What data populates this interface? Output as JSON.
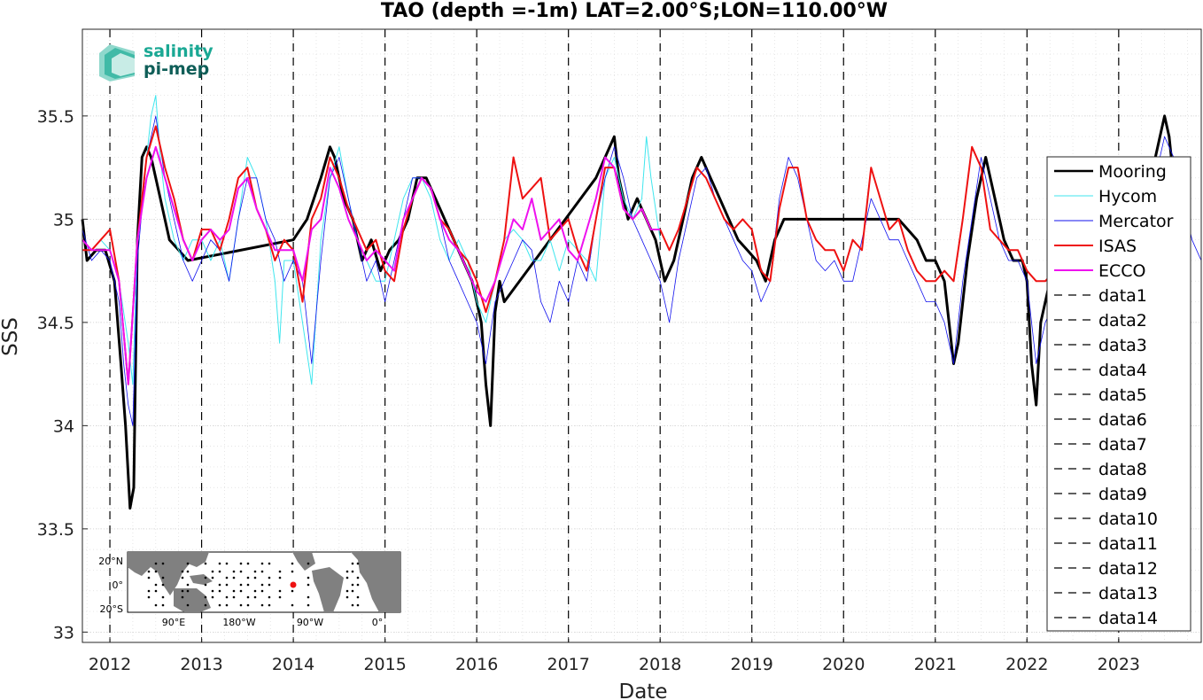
{
  "chart_data": {
    "type": "line",
    "title": "TAO (depth =-1m) LAT=2.00°S;LON=110.00°W",
    "xlabel": "Date",
    "ylabel": "SSS",
    "xlim": [
      2011.7,
      2023.9
    ],
    "ylim": [
      32.95,
      35.92
    ],
    "grid": true,
    "legend_position": "right",
    "x_ticks": [
      2012,
      2013,
      2014,
      2015,
      2016,
      2017,
      2018,
      2019,
      2020,
      2021,
      2022,
      2023
    ],
    "x_tick_labels": [
      "2012",
      "2013",
      "2014",
      "2015",
      "2016",
      "2017",
      "2018",
      "2019",
      "2020",
      "2021",
      "2022",
      "2023"
    ],
    "y_ticks": [
      33,
      33.5,
      34,
      34.5,
      35,
      35.5
    ],
    "y_tick_labels": [
      "33",
      "33.5",
      "34",
      "34.5",
      "35",
      "35.5"
    ],
    "series": [
      {
        "name": "Mooring",
        "color": "#000000",
        "x": [
          2011.7,
          2011.75,
          2011.85,
          2011.95,
          2012.05,
          2012.12,
          2012.17,
          2012.22,
          2012.26,
          2012.3,
          2012.35,
          2012.4,
          2012.45,
          2012.55,
          2012.65,
          2012.75,
          2012.85,
          2014.0,
          2014.15,
          2014.3,
          2014.4,
          2014.45,
          2014.55,
          2014.65,
          2014.75,
          2014.85,
          2014.95,
          2015.05,
          2015.15,
          2015.25,
          2015.35,
          2015.45,
          2015.55,
          2015.65,
          2015.75,
          2015.85,
          2015.95,
          2016.05,
          2016.1,
          2016.15,
          2016.2,
          2016.25,
          2016.3,
          2017.3,
          2017.4,
          2017.5,
          2017.55,
          2017.65,
          2017.75,
          2017.85,
          2017.95,
          2018.05,
          2018.15,
          2018.25,
          2018.35,
          2018.45,
          2018.55,
          2018.65,
          2018.75,
          2018.85,
          2018.95,
          2019.05,
          2019.15,
          2019.25,
          2019.35,
          2020.6,
          2020.7,
          2020.8,
          2020.9,
          2021.0,
          2021.1,
          2021.15,
          2021.2,
          2021.25,
          2021.35,
          2021.45,
          2021.55,
          2021.65,
          2021.75,
          2021.85,
          2021.95,
          2022.0,
          2022.05,
          2022.1,
          2022.15,
          2022.25,
          2023.35,
          2023.45,
          2023.5,
          2023.55,
          2023.62
        ],
        "y": [
          35.0,
          34.8,
          34.85,
          34.85,
          34.7,
          34.3,
          34.0,
          33.6,
          33.7,
          34.9,
          35.3,
          35.35,
          35.3,
          35.1,
          34.9,
          34.85,
          34.8,
          34.9,
          35.0,
          35.2,
          35.35,
          35.3,
          35.1,
          35.0,
          34.8,
          34.9,
          34.75,
          34.85,
          34.9,
          35.0,
          35.2,
          35.2,
          35.1,
          35.0,
          34.9,
          34.8,
          34.7,
          34.5,
          34.2,
          34.0,
          34.55,
          34.7,
          34.6,
          35.2,
          35.3,
          35.4,
          35.2,
          35.0,
          35.1,
          35.0,
          34.9,
          34.7,
          34.8,
          35.0,
          35.2,
          35.3,
          35.2,
          35.1,
          35.0,
          34.9,
          34.85,
          34.8,
          34.7,
          34.9,
          35.0,
          35.0,
          34.95,
          34.9,
          34.8,
          34.8,
          34.7,
          34.5,
          34.3,
          34.4,
          34.8,
          35.1,
          35.3,
          35.1,
          34.9,
          34.8,
          34.8,
          34.7,
          34.3,
          34.1,
          34.5,
          34.7,
          35.2,
          35.4,
          35.5,
          35.4,
          35.1
        ]
      },
      {
        "name": "Hycom",
        "color": "#3fe6ee",
        "x": [
          2011.7,
          2011.8,
          2011.9,
          2012.0,
          2012.1,
          2012.2,
          2012.25,
          2012.3,
          2012.4,
          2012.45,
          2012.5,
          2012.55,
          2012.6,
          2012.7,
          2012.8,
          2012.9,
          2013.0,
          2013.1,
          2013.2,
          2013.3,
          2013.4,
          2013.5,
          2013.6,
          2013.7,
          2013.8,
          2013.85,
          2013.9,
          2014.0,
          2014.1,
          2014.2,
          2014.3,
          2014.4,
          2014.5,
          2014.6,
          2014.7,
          2014.8,
          2014.9,
          2015.0,
          2015.1,
          2015.2,
          2015.3,
          2015.4,
          2015.5,
          2015.6,
          2015.7,
          2015.8,
          2015.9,
          2016.0,
          2016.1,
          2016.2,
          2016.3,
          2016.4,
          2016.5,
          2016.6,
          2016.7,
          2016.8,
          2016.9,
          2017.0,
          2017.1,
          2017.2,
          2017.3,
          2017.4,
          2017.5,
          2017.6,
          2017.7,
          2017.8,
          2017.85,
          2017.9,
          2018.0
        ],
        "y": [
          34.9,
          34.85,
          34.9,
          34.85,
          34.7,
          34.4,
          34.2,
          34.9,
          35.3,
          35.5,
          35.6,
          35.3,
          35.1,
          34.9,
          34.8,
          34.9,
          34.9,
          34.8,
          34.9,
          34.7,
          35.0,
          35.3,
          35.2,
          35.0,
          34.7,
          34.4,
          34.8,
          34.8,
          34.5,
          34.2,
          34.9,
          35.2,
          35.35,
          35.1,
          34.9,
          34.8,
          34.7,
          34.7,
          34.9,
          35.1,
          35.2,
          35.2,
          35.1,
          34.9,
          34.8,
          34.9,
          34.8,
          34.6,
          34.5,
          34.7,
          34.9,
          34.95,
          34.9,
          34.8,
          34.8,
          34.9,
          34.75,
          34.9,
          34.85,
          34.8,
          34.7,
          35.2,
          35.3,
          35.1,
          35.0,
          35.1,
          35.4,
          35.2,
          34.9
        ]
      },
      {
        "name": "Mercator",
        "color": "#1010ee",
        "x": [
          2011.7,
          2011.8,
          2011.9,
          2012.0,
          2012.1,
          2012.15,
          2012.2,
          2012.25,
          2012.3,
          2012.4,
          2012.5,
          2012.6,
          2012.7,
          2012.8,
          2012.9,
          2013.0,
          2013.1,
          2013.2,
          2013.3,
          2013.4,
          2013.5,
          2013.6,
          2013.7,
          2013.8,
          2013.9,
          2014.0,
          2014.1,
          2014.2,
          2014.3,
          2014.4,
          2014.5,
          2014.6,
          2014.7,
          2014.8,
          2014.9,
          2015.0,
          2015.1,
          2015.2,
          2015.3,
          2015.4,
          2015.5,
          2015.6,
          2015.7,
          2015.8,
          2015.9,
          2016.0,
          2016.1,
          2016.2,
          2016.3,
          2016.4,
          2016.5,
          2016.6,
          2016.7,
          2016.8,
          2016.9,
          2017.0,
          2017.1,
          2017.2,
          2017.3,
          2017.4,
          2017.5,
          2017.6,
          2017.7,
          2017.8,
          2017.9,
          2018.0,
          2018.1,
          2018.2,
          2018.3,
          2018.4,
          2018.5,
          2018.6,
          2018.7,
          2018.8,
          2018.9,
          2019.0,
          2019.1,
          2019.2,
          2019.3,
          2019.4,
          2019.5,
          2019.6,
          2019.7,
          2019.8,
          2019.9,
          2020.0,
          2020.1,
          2020.2,
          2020.3,
          2020.4,
          2020.5,
          2020.6,
          2020.7,
          2020.8,
          2020.9,
          2021.0,
          2021.1,
          2021.2,
          2021.3,
          2021.4,
          2021.5,
          2021.6,
          2021.7,
          2021.8,
          2021.9,
          2022.0,
          2022.1,
          2022.2,
          2022.3,
          2022.4,
          2022.5,
          2022.6,
          2022.7,
          2022.8,
          2022.9,
          2023.0,
          2023.1,
          2023.2,
          2023.3,
          2023.4,
          2023.5,
          2023.6,
          2023.7,
          2023.8,
          2023.9
        ],
        "y": [
          34.95,
          34.8,
          34.85,
          34.8,
          34.6,
          34.3,
          34.1,
          34.0,
          34.8,
          35.3,
          35.5,
          35.2,
          35.0,
          34.8,
          34.7,
          34.8,
          34.9,
          34.85,
          34.7,
          35.0,
          35.2,
          35.2,
          35.0,
          34.9,
          34.7,
          34.8,
          34.7,
          34.3,
          34.8,
          35.2,
          35.3,
          35.1,
          34.9,
          34.7,
          34.8,
          34.6,
          34.8,
          35.0,
          35.2,
          35.2,
          35.15,
          35.0,
          34.8,
          34.7,
          34.6,
          34.5,
          34.3,
          34.6,
          34.7,
          34.8,
          34.9,
          34.85,
          34.6,
          34.5,
          34.7,
          34.6,
          34.8,
          34.7,
          35.0,
          35.2,
          35.35,
          35.2,
          35.0,
          34.9,
          34.8,
          34.7,
          34.5,
          34.8,
          35.0,
          35.2,
          35.25,
          35.1,
          35.0,
          34.9,
          34.8,
          34.75,
          34.6,
          34.7,
          35.1,
          35.3,
          35.2,
          35.0,
          34.8,
          34.75,
          34.8,
          34.7,
          34.7,
          34.9,
          35.1,
          35.0,
          34.9,
          34.9,
          34.8,
          34.7,
          34.6,
          34.6,
          34.5,
          34.3,
          34.7,
          35.0,
          35.3,
          35.1,
          34.9,
          34.8,
          34.8,
          34.7,
          34.3,
          34.5,
          34.6,
          34.7,
          34.7,
          34.75,
          34.6,
          34.8,
          34.7,
          34.8,
          34.75,
          34.85,
          35.0,
          35.2,
          35.4,
          35.3,
          35.1,
          34.9,
          34.8
        ]
      },
      {
        "name": "ISAS",
        "color": "#ee1111",
        "x": [
          2011.7,
          2011.8,
          2011.9,
          2012.0,
          2012.1,
          2012.2,
          2012.3,
          2012.4,
          2012.5,
          2012.6,
          2012.7,
          2012.8,
          2012.9,
          2013.0,
          2013.1,
          2013.2,
          2013.3,
          2013.4,
          2013.5,
          2013.6,
          2013.7,
          2013.8,
          2013.9,
          2014.0,
          2014.1,
          2014.2,
          2014.3,
          2014.4,
          2014.5,
          2014.6,
          2014.7,
          2014.8,
          2014.9,
          2015.0,
          2015.1,
          2015.2,
          2015.3,
          2015.4,
          2015.5,
          2015.6,
          2015.7,
          2015.8,
          2015.9,
          2016.0,
          2016.1,
          2016.2,
          2016.3,
          2016.4,
          2016.5,
          2016.6,
          2016.7,
          2016.8,
          2016.9,
          2017.0,
          2017.1,
          2017.2,
          2017.3,
          2017.4,
          2017.5,
          2017.6,
          2017.7,
          2017.8,
          2017.9,
          2018.0,
          2018.1,
          2018.2,
          2018.3,
          2018.4,
          2018.5,
          2018.6,
          2018.7,
          2018.8,
          2018.9,
          2019.0,
          2019.1,
          2019.2,
          2019.3,
          2019.4,
          2019.5,
          2019.6,
          2019.7,
          2019.8,
          2019.9,
          2020.0,
          2020.1,
          2020.2,
          2020.3,
          2020.4,
          2020.5,
          2020.6,
          2020.7,
          2020.8,
          2020.9,
          2021.0,
          2021.1,
          2021.2,
          2021.3,
          2021.4,
          2021.5,
          2021.6,
          2021.7,
          2021.8,
          2021.9,
          2022.0,
          2022.1,
          2022.2,
          2022.3
        ],
        "y": [
          34.85,
          34.85,
          34.9,
          34.95,
          34.7,
          34.2,
          34.9,
          35.3,
          35.45,
          35.25,
          35.1,
          34.9,
          34.8,
          34.95,
          34.95,
          34.85,
          35.0,
          35.2,
          35.25,
          35.05,
          34.95,
          34.8,
          34.9,
          34.85,
          34.6,
          35.0,
          35.1,
          35.3,
          35.2,
          35.05,
          34.95,
          34.85,
          34.9,
          34.75,
          34.7,
          34.95,
          35.1,
          35.2,
          35.15,
          35.0,
          34.95,
          34.85,
          34.8,
          34.7,
          34.55,
          34.7,
          34.9,
          35.3,
          35.1,
          35.15,
          35.2,
          34.9,
          34.95,
          35.0,
          34.85,
          34.75,
          35.0,
          35.25,
          35.25,
          35.05,
          35.0,
          35.05,
          34.95,
          34.95,
          34.85,
          34.95,
          35.1,
          35.25,
          35.2,
          35.1,
          35.0,
          34.95,
          35.0,
          34.95,
          34.75,
          34.7,
          35.05,
          35.25,
          35.25,
          35.0,
          34.9,
          34.85,
          34.85,
          34.75,
          34.9,
          34.85,
          35.25,
          35.1,
          34.95,
          35.0,
          34.85,
          34.75,
          34.7,
          34.7,
          34.75,
          34.7,
          35.0,
          35.35,
          35.25,
          34.95,
          34.9,
          34.85,
          34.85,
          34.75,
          34.7,
          34.7,
          34.75
        ]
      },
      {
        "name": "ECCO",
        "color": "#ee11ee",
        "x": [
          2011.7,
          2011.8,
          2011.9,
          2012.0,
          2012.1,
          2012.2,
          2012.3,
          2012.4,
          2012.5,
          2012.6,
          2012.7,
          2012.8,
          2012.9,
          2013.0,
          2013.1,
          2013.2,
          2013.3,
          2013.4,
          2013.5,
          2013.6,
          2013.7,
          2013.8,
          2013.9,
          2014.0,
          2014.1,
          2014.2,
          2014.3,
          2014.4,
          2014.5,
          2014.6,
          2014.7,
          2014.8,
          2014.9,
          2015.0,
          2015.1,
          2015.2,
          2015.3,
          2015.4,
          2015.5,
          2015.6,
          2015.7,
          2015.8,
          2015.9,
          2016.0,
          2016.1,
          2016.2,
          2016.3,
          2016.4,
          2016.5,
          2016.6,
          2016.7,
          2016.8,
          2016.9,
          2017.0,
          2017.1,
          2017.2,
          2017.3,
          2017.4,
          2017.5,
          2017.6,
          2017.7,
          2017.8,
          2017.9,
          2018.0
        ],
        "y": [
          34.9,
          34.85,
          34.85,
          34.85,
          34.7,
          34.2,
          34.9,
          35.2,
          35.35,
          35.2,
          35.05,
          34.9,
          34.8,
          34.9,
          34.95,
          34.9,
          34.95,
          35.15,
          35.2,
          35.05,
          34.95,
          34.85,
          34.85,
          34.85,
          34.7,
          34.95,
          35.0,
          35.25,
          35.15,
          35.0,
          34.9,
          34.8,
          34.85,
          34.8,
          34.75,
          35.0,
          35.1,
          35.2,
          35.15,
          35.0,
          34.9,
          34.85,
          34.75,
          34.65,
          34.6,
          34.7,
          34.85,
          35.0,
          34.95,
          35.1,
          34.9,
          34.95,
          35.0,
          34.85,
          34.8,
          34.95,
          35.1,
          35.3,
          35.25,
          35.05,
          35.0,
          35.05,
          34.95,
          34.95
        ]
      }
    ],
    "dashed_series_names": [
      "data1",
      "data2",
      "data3",
      "data4",
      "data5",
      "data6",
      "data7",
      "data8",
      "data9",
      "data10",
      "data11",
      "data12",
      "data13",
      "data14"
    ],
    "dashed_series_x": [
      2012,
      2013,
      2014,
      2015,
      2016,
      2017,
      2018,
      2019,
      2020,
      2021,
      2022,
      2023
    ]
  },
  "logo": {
    "line1": "salinity",
    "line2": "pi-mep",
    "color": "#1aa894",
    "color2": "#0f5e58"
  },
  "inset_map": {
    "lat_labels": [
      "20°N",
      "0°",
      "20°S"
    ],
    "lon_labels": [
      "90°E",
      "180°W",
      "90°W",
      "0°"
    ],
    "land_color": "#808080",
    "marker_color": "#ee1111"
  }
}
